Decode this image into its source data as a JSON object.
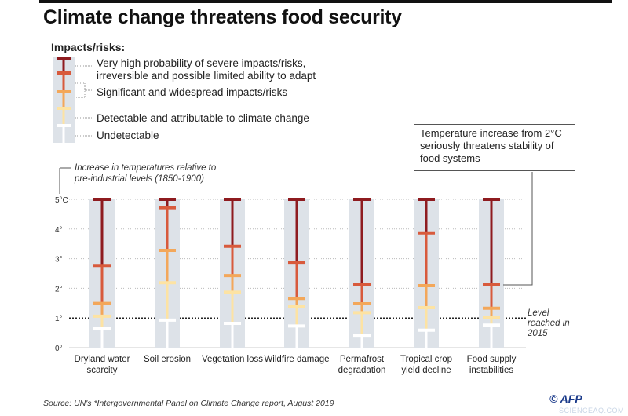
{
  "title": "Climate change threatens food security",
  "legend": {
    "title": "Impacts/risks:",
    "items": [
      "Very high probability of severe impacts/risks, irreversible and possible limited ability to adapt",
      "Significant and widespread impacts/risks",
      "Detectable and attributable to climate change",
      "Undetectable"
    ]
  },
  "note": "Temperature increase from 2°C seriously threatens stability of food systems",
  "level_label": "Level reached in 2015",
  "source": "Source: UN's *Intergovernmental Panel on Climate Change report, August 2019",
  "credit": "© AFP",
  "watermark": "SCIENCEAQ.COM",
  "colors": {
    "undetectable": "#ffffff",
    "detectable": "#fde3a3",
    "significant": "#f3a75a",
    "high": "#d85a3c",
    "very_high": "#8e1b1f",
    "track": "#dde2e8"
  },
  "chart_data": {
    "type": "range-bar",
    "ylabel": "Increase in temperatures relative to pre-industrial levels (1850-1900)",
    "ylim": [
      0,
      5
    ],
    "yticks": [
      "0°",
      "1°",
      "2°",
      "3°",
      "4°",
      "5°C"
    ],
    "reference_line": {
      "value": 1,
      "label": "Level reached in 2015"
    },
    "categories": [
      "Dryland water scarcity",
      "Soil erosion",
      "Vegetation loss",
      "Wildfire damage",
      "Permafrost degradation",
      "Tropical crop yield decline",
      "Food supply instabilities"
    ],
    "thresholds": [
      {
        "category": "Dryland water scarcity",
        "detectable": 0.66,
        "significant": 1.06,
        "high": 1.49,
        "very_high": 2.77
      },
      {
        "category": "Soil erosion",
        "detectable": 0.93,
        "significant": 2.19,
        "high": 3.28,
        "very_high": 4.72
      },
      {
        "category": "Vegetation loss",
        "detectable": 0.82,
        "significant": 1.87,
        "high": 2.43,
        "very_high": 3.42
      },
      {
        "category": "Wildfire damage",
        "detectable": 0.73,
        "significant": 1.39,
        "high": 1.66,
        "very_high": 2.88
      },
      {
        "category": "Permafrost degradation",
        "detectable": 0.42,
        "significant": 1.18,
        "high": 1.48,
        "very_high": 2.14
      },
      {
        "category": "Tropical crop yield decline",
        "detectable": 0.59,
        "significant": 1.35,
        "high": 2.09,
        "very_high": 3.87
      },
      {
        "category": "Food supply instabilities",
        "detectable": 0.76,
        "significant": 1.01,
        "high": 1.33,
        "very_high": 2.14
      }
    ]
  }
}
